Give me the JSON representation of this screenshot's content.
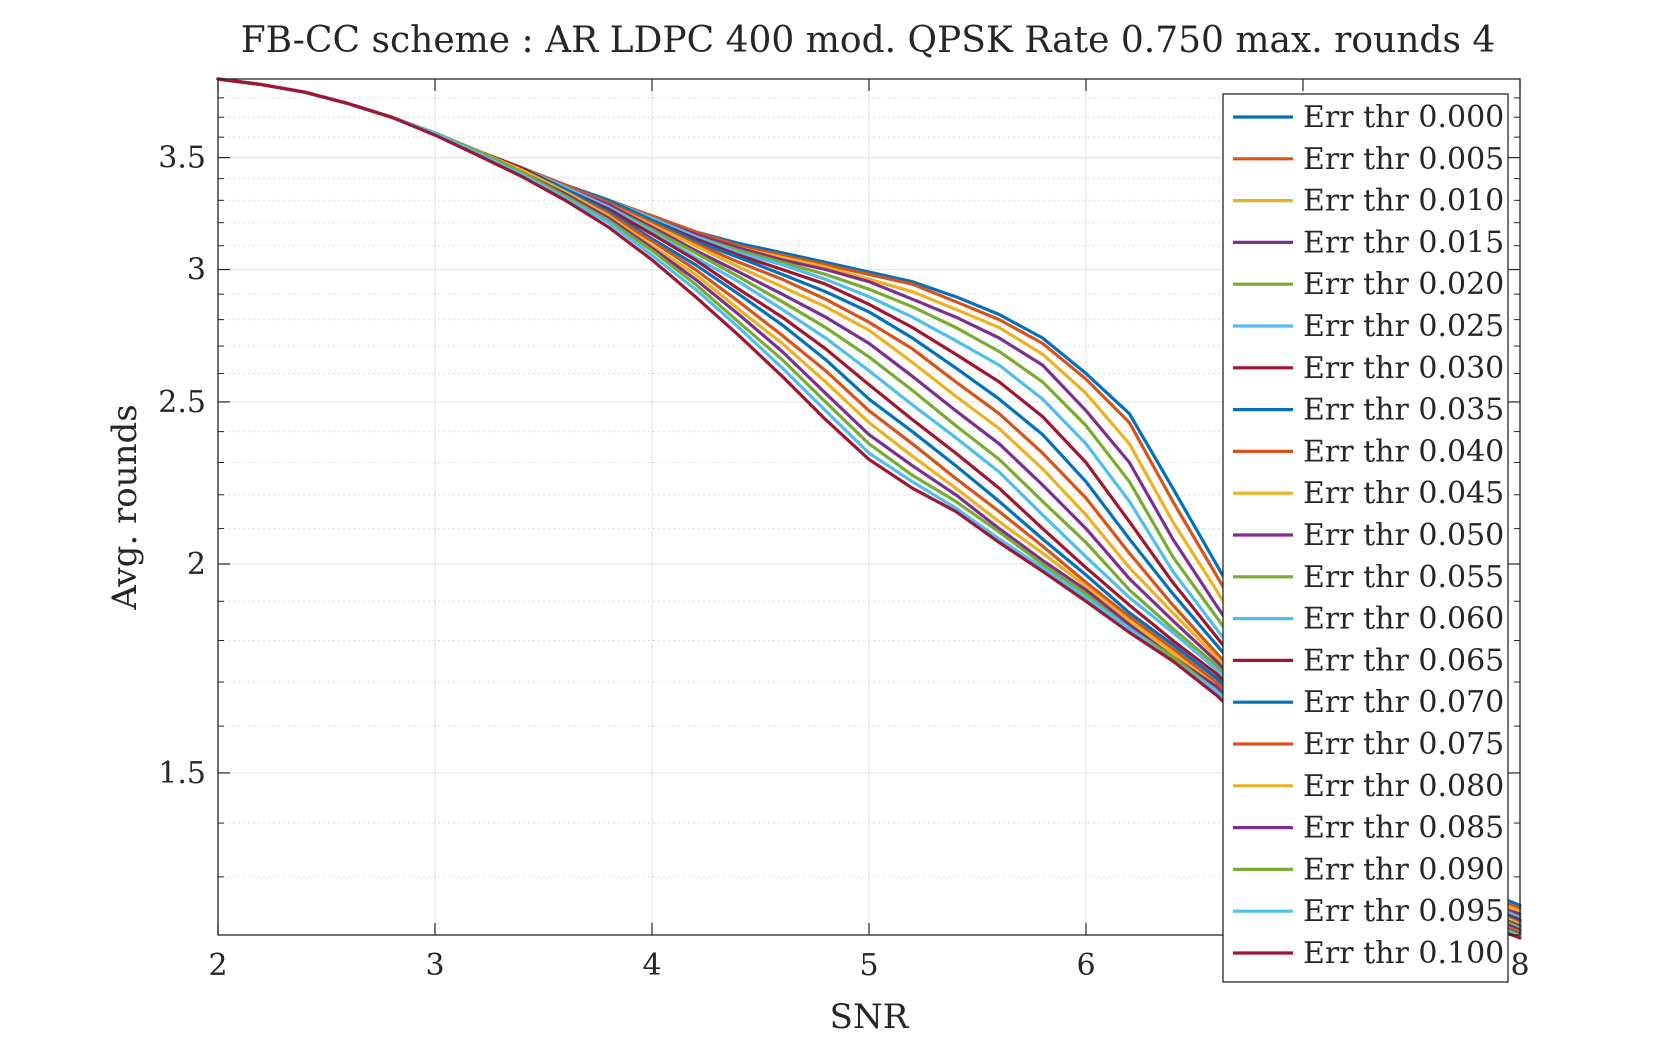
{
  "chart_data": {
    "type": "line",
    "title": "FB-CC scheme : AR LDPC 400 mod. QPSK Rate 0.750 max. rounds 4",
    "xlabel": "SNR",
    "ylabel": "Avg. rounds",
    "xlim": [
      2,
      8
    ],
    "ylim": [
      1.2,
      3.9
    ],
    "yscale": "log",
    "grid": true,
    "minor_grid": true,
    "legend_position": "top-right",
    "xticks": [
      2,
      3,
      4,
      5,
      6,
      7,
      8
    ],
    "xtick_labels": [
      "2",
      "3",
      "4",
      "5",
      "6",
      "",
      "8"
    ],
    "yticks": [
      1.5,
      2,
      2.5,
      3,
      3.5
    ],
    "ytick_labels": [
      "1.5",
      "2",
      "2.5",
      "3",
      "3.5"
    ],
    "x": [
      2.0,
      2.2,
      2.4,
      2.6,
      2.8,
      3.0,
      3.2,
      3.4,
      3.6,
      3.8,
      4.0,
      4.2,
      4.4,
      4.6,
      4.8,
      5.0,
      5.2,
      5.4,
      5.6,
      5.8,
      6.0,
      6.2,
      6.4,
      6.6,
      6.8,
      7.0,
      7.2,
      7.4,
      7.6,
      7.8,
      8.0
    ],
    "series": [
      {
        "name": "Err thr 0.000",
        "color": "#0072BD",
        "values": [
          3.9,
          3.87,
          3.83,
          3.77,
          3.7,
          3.62,
          3.53,
          3.45,
          3.37,
          3.3,
          3.23,
          3.16,
          3.11,
          3.07,
          3.03,
          2.99,
          2.95,
          2.89,
          2.82,
          2.73,
          2.6,
          2.46,
          2.22,
          2.0,
          1.8,
          1.62,
          1.48,
          1.38,
          1.32,
          1.28,
          1.25
        ]
      },
      {
        "name": "Err thr 0.005",
        "color": "#D95319",
        "values": [
          3.9,
          3.87,
          3.83,
          3.77,
          3.7,
          3.62,
          3.53,
          3.45,
          3.37,
          3.3,
          3.23,
          3.16,
          3.1,
          3.06,
          3.02,
          2.98,
          2.94,
          2.87,
          2.8,
          2.71,
          2.58,
          2.43,
          2.18,
          1.97,
          1.78,
          1.61,
          1.47,
          1.37,
          1.31,
          1.27,
          1.245
        ]
      },
      {
        "name": "Err thr 0.010",
        "color": "#EDB120",
        "values": [
          3.9,
          3.87,
          3.83,
          3.77,
          3.7,
          3.62,
          3.53,
          3.45,
          3.37,
          3.3,
          3.22,
          3.15,
          3.09,
          3.05,
          3.01,
          2.96,
          2.91,
          2.84,
          2.77,
          2.67,
          2.53,
          2.36,
          2.12,
          1.93,
          1.75,
          1.6,
          1.46,
          1.37,
          1.31,
          1.27,
          1.24
        ]
      },
      {
        "name": "Err thr 0.015",
        "color": "#7E2F8E",
        "values": [
          3.9,
          3.87,
          3.83,
          3.77,
          3.7,
          3.62,
          3.53,
          3.45,
          3.37,
          3.3,
          3.22,
          3.15,
          3.09,
          3.04,
          3.0,
          2.95,
          2.88,
          2.81,
          2.73,
          2.63,
          2.47,
          2.3,
          2.07,
          1.89,
          1.73,
          1.58,
          1.46,
          1.36,
          1.3,
          1.26,
          1.235
        ]
      },
      {
        "name": "Err thr 0.020",
        "color": "#77AC30",
        "values": [
          3.9,
          3.87,
          3.83,
          3.77,
          3.7,
          3.62,
          3.53,
          3.45,
          3.37,
          3.3,
          3.22,
          3.14,
          3.08,
          3.03,
          2.98,
          2.92,
          2.85,
          2.77,
          2.68,
          2.57,
          2.42,
          2.24,
          2.02,
          1.86,
          1.71,
          1.57,
          1.45,
          1.36,
          1.3,
          1.26,
          1.23
        ]
      },
      {
        "name": "Err thr 0.025",
        "color": "#4DBEEE",
        "values": [
          3.9,
          3.87,
          3.83,
          3.77,
          3.7,
          3.62,
          3.53,
          3.45,
          3.37,
          3.3,
          3.22,
          3.14,
          3.07,
          3.02,
          2.96,
          2.89,
          2.81,
          2.72,
          2.63,
          2.51,
          2.36,
          2.18,
          1.98,
          1.83,
          1.69,
          1.56,
          1.45,
          1.36,
          1.3,
          1.26,
          1.228
        ]
      },
      {
        "name": "Err thr 0.030",
        "color": "#A2142F",
        "values": [
          3.9,
          3.87,
          3.83,
          3.77,
          3.7,
          3.62,
          3.53,
          3.45,
          3.37,
          3.3,
          3.21,
          3.13,
          3.06,
          3.0,
          2.94,
          2.86,
          2.77,
          2.67,
          2.57,
          2.45,
          2.3,
          2.12,
          1.95,
          1.81,
          1.68,
          1.55,
          1.44,
          1.35,
          1.29,
          1.255,
          1.225
        ]
      },
      {
        "name": "Err thr 0.035",
        "color": "#0072BD",
        "values": [
          3.9,
          3.87,
          3.83,
          3.77,
          3.7,
          3.62,
          3.53,
          3.45,
          3.37,
          3.3,
          3.21,
          3.12,
          3.05,
          2.98,
          2.91,
          2.83,
          2.73,
          2.62,
          2.51,
          2.39,
          2.24,
          2.07,
          1.92,
          1.79,
          1.67,
          1.54,
          1.44,
          1.35,
          1.29,
          1.255,
          1.222
        ]
      },
      {
        "name": "Err thr 0.040",
        "color": "#D95319",
        "values": [
          3.9,
          3.87,
          3.83,
          3.77,
          3.7,
          3.62,
          3.53,
          3.45,
          3.37,
          3.29,
          3.2,
          3.11,
          3.03,
          2.96,
          2.88,
          2.79,
          2.69,
          2.57,
          2.46,
          2.33,
          2.19,
          2.03,
          1.89,
          1.77,
          1.66,
          1.54,
          1.43,
          1.35,
          1.29,
          1.25,
          1.22
        ]
      },
      {
        "name": "Err thr 0.045",
        "color": "#EDB120",
        "values": [
          3.9,
          3.87,
          3.83,
          3.77,
          3.7,
          3.62,
          3.53,
          3.45,
          3.36,
          3.28,
          3.19,
          3.1,
          3.01,
          2.93,
          2.85,
          2.76,
          2.64,
          2.52,
          2.41,
          2.28,
          2.14,
          1.99,
          1.87,
          1.76,
          1.65,
          1.53,
          1.43,
          1.34,
          1.29,
          1.25,
          1.218
        ]
      },
      {
        "name": "Err thr 0.050",
        "color": "#7E2F8E",
        "values": [
          3.9,
          3.87,
          3.83,
          3.77,
          3.7,
          3.62,
          3.53,
          3.45,
          3.36,
          3.28,
          3.18,
          3.08,
          2.99,
          2.9,
          2.81,
          2.71,
          2.59,
          2.47,
          2.36,
          2.23,
          2.1,
          1.96,
          1.85,
          1.75,
          1.64,
          1.53,
          1.42,
          1.34,
          1.285,
          1.245,
          1.215
        ]
      },
      {
        "name": "Err thr 0.055",
        "color": "#77AC30",
        "values": [
          3.9,
          3.87,
          3.83,
          3.77,
          3.7,
          3.62,
          3.53,
          3.45,
          3.36,
          3.27,
          3.17,
          3.07,
          2.97,
          2.87,
          2.77,
          2.66,
          2.54,
          2.42,
          2.31,
          2.18,
          2.06,
          1.93,
          1.83,
          1.74,
          1.63,
          1.52,
          1.42,
          1.34,
          1.285,
          1.245,
          1.212
        ]
      },
      {
        "name": "Err thr 0.060",
        "color": "#4DBEEE",
        "values": [
          3.9,
          3.87,
          3.83,
          3.77,
          3.7,
          3.62,
          3.53,
          3.45,
          3.36,
          3.27,
          3.16,
          3.05,
          2.95,
          2.84,
          2.73,
          2.61,
          2.49,
          2.38,
          2.27,
          2.14,
          2.02,
          1.91,
          1.82,
          1.73,
          1.62,
          1.52,
          1.41,
          1.33,
          1.28,
          1.24,
          1.21
        ]
      },
      {
        "name": "Err thr 0.065",
        "color": "#A2142F",
        "values": [
          3.9,
          3.87,
          3.83,
          3.77,
          3.7,
          3.62,
          3.53,
          3.45,
          3.35,
          3.26,
          3.15,
          3.04,
          2.92,
          2.81,
          2.69,
          2.56,
          2.44,
          2.33,
          2.22,
          2.1,
          1.99,
          1.89,
          1.8,
          1.72,
          1.62,
          1.51,
          1.41,
          1.33,
          1.28,
          1.24,
          1.208
        ]
      },
      {
        "name": "Err thr 0.070",
        "color": "#0072BD",
        "values": [
          3.9,
          3.87,
          3.83,
          3.77,
          3.7,
          3.62,
          3.53,
          3.44,
          3.35,
          3.25,
          3.13,
          3.02,
          2.9,
          2.78,
          2.65,
          2.51,
          2.4,
          2.29,
          2.18,
          2.07,
          1.97,
          1.87,
          1.79,
          1.71,
          1.61,
          1.51,
          1.41,
          1.33,
          1.275,
          1.235,
          1.206
        ]
      },
      {
        "name": "Err thr 0.075",
        "color": "#D95319",
        "values": [
          3.9,
          3.87,
          3.83,
          3.77,
          3.7,
          3.62,
          3.53,
          3.44,
          3.34,
          3.24,
          3.12,
          3.0,
          2.87,
          2.74,
          2.61,
          2.47,
          2.36,
          2.25,
          2.15,
          2.05,
          1.95,
          1.86,
          1.78,
          1.7,
          1.6,
          1.5,
          1.4,
          1.33,
          1.275,
          1.235,
          1.205
        ]
      },
      {
        "name": "Err thr 0.080",
        "color": "#EDB120",
        "values": [
          3.9,
          3.87,
          3.83,
          3.77,
          3.7,
          3.62,
          3.53,
          3.44,
          3.34,
          3.23,
          3.1,
          2.98,
          2.84,
          2.71,
          2.57,
          2.43,
          2.32,
          2.22,
          2.12,
          2.03,
          1.94,
          1.85,
          1.77,
          1.69,
          1.6,
          1.5,
          1.4,
          1.32,
          1.27,
          1.23,
          1.203
        ]
      },
      {
        "name": "Err thr 0.085",
        "color": "#7E2F8E",
        "values": [
          3.9,
          3.87,
          3.83,
          3.77,
          3.7,
          3.62,
          3.53,
          3.43,
          3.33,
          3.22,
          3.09,
          2.96,
          2.82,
          2.68,
          2.53,
          2.39,
          2.29,
          2.2,
          2.1,
          2.01,
          1.93,
          1.84,
          1.76,
          1.69,
          1.59,
          1.49,
          1.4,
          1.32,
          1.27,
          1.23,
          1.202
        ]
      },
      {
        "name": "Err thr 0.090",
        "color": "#77AC30",
        "values": [
          3.9,
          3.87,
          3.83,
          3.77,
          3.7,
          3.62,
          3.53,
          3.43,
          3.32,
          3.21,
          3.08,
          2.94,
          2.79,
          2.65,
          2.5,
          2.36,
          2.26,
          2.18,
          2.09,
          2.0,
          1.92,
          1.83,
          1.76,
          1.68,
          1.59,
          1.49,
          1.39,
          1.32,
          1.265,
          1.228,
          1.2
        ]
      },
      {
        "name": "Err thr 0.095",
        "color": "#4DBEEE",
        "values": [
          3.9,
          3.87,
          3.83,
          3.77,
          3.7,
          3.62,
          3.52,
          3.42,
          3.31,
          3.2,
          3.06,
          2.92,
          2.77,
          2.62,
          2.47,
          2.33,
          2.24,
          2.16,
          2.07,
          1.99,
          1.91,
          1.83,
          1.75,
          1.68,
          1.58,
          1.49,
          1.39,
          1.31,
          1.265,
          1.225,
          1.198
        ]
      },
      {
        "name": "Err thr 0.100",
        "color": "#A2142F",
        "values": [
          3.9,
          3.87,
          3.83,
          3.77,
          3.7,
          3.61,
          3.51,
          3.41,
          3.3,
          3.18,
          3.04,
          2.89,
          2.74,
          2.59,
          2.44,
          2.31,
          2.22,
          2.15,
          2.06,
          1.98,
          1.9,
          1.82,
          1.75,
          1.67,
          1.58,
          1.48,
          1.39,
          1.31,
          1.26,
          1.222,
          1.195
        ]
      }
    ]
  }
}
